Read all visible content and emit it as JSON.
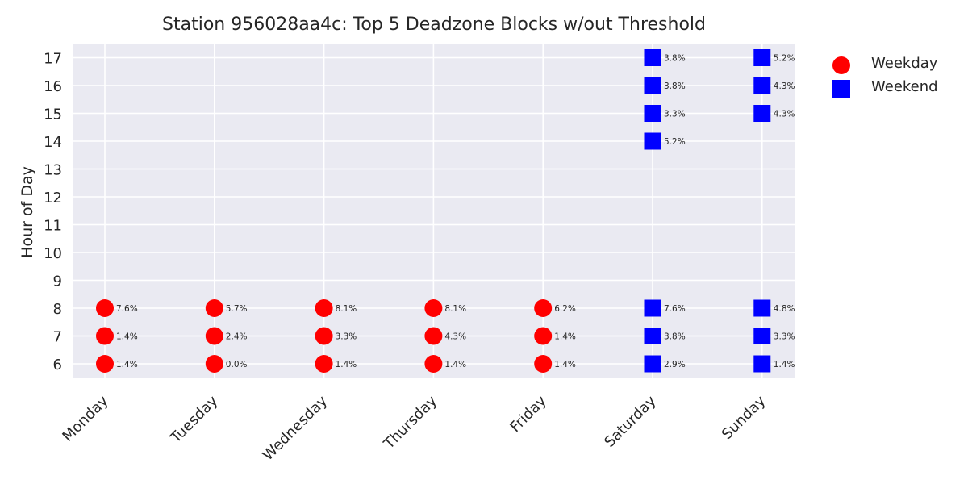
{
  "chart_data": {
    "type": "scatter",
    "title": "Station 956028aa4c: Top 5 Deadzone Blocks w/out Threshold",
    "xlabel": "",
    "ylabel": "Hour of Day",
    "categories": [
      "Monday",
      "Tuesday",
      "Wednesday",
      "Thursday",
      "Friday",
      "Saturday",
      "Sunday"
    ],
    "y_ticks": [
      6,
      7,
      8,
      9,
      10,
      11,
      12,
      13,
      14,
      15,
      16,
      17
    ],
    "ylim": [
      5.5,
      17.5
    ],
    "grid": true,
    "legend_position": "outside-right",
    "series": [
      {
        "name": "Weekday",
        "marker": "circle",
        "color": "#ff0000",
        "points": [
          {
            "x": "Monday",
            "y": 8,
            "label": "7.6%"
          },
          {
            "x": "Monday",
            "y": 7,
            "label": "1.4%"
          },
          {
            "x": "Monday",
            "y": 6,
            "label": "1.4%"
          },
          {
            "x": "Tuesday",
            "y": 8,
            "label": "5.7%"
          },
          {
            "x": "Tuesday",
            "y": 7,
            "label": "2.4%"
          },
          {
            "x": "Tuesday",
            "y": 6,
            "label": "0.0%"
          },
          {
            "x": "Wednesday",
            "y": 8,
            "label": "8.1%"
          },
          {
            "x": "Wednesday",
            "y": 7,
            "label": "3.3%"
          },
          {
            "x": "Wednesday",
            "y": 6,
            "label": "1.4%"
          },
          {
            "x": "Thursday",
            "y": 8,
            "label": "8.1%"
          },
          {
            "x": "Thursday",
            "y": 7,
            "label": "4.3%"
          },
          {
            "x": "Thursday",
            "y": 6,
            "label": "1.4%"
          },
          {
            "x": "Friday",
            "y": 8,
            "label": "6.2%"
          },
          {
            "x": "Friday",
            "y": 7,
            "label": "1.4%"
          },
          {
            "x": "Friday",
            "y": 6,
            "label": "1.4%"
          }
        ]
      },
      {
        "name": "Weekend",
        "marker": "square",
        "color": "#0000ff",
        "points": [
          {
            "x": "Saturday",
            "y": 17,
            "label": "3.8%"
          },
          {
            "x": "Saturday",
            "y": 16,
            "label": "3.8%"
          },
          {
            "x": "Saturday",
            "y": 15,
            "label": "3.3%"
          },
          {
            "x": "Saturday",
            "y": 14,
            "label": "5.2%"
          },
          {
            "x": "Saturday",
            "y": 8,
            "label": "7.6%"
          },
          {
            "x": "Saturday",
            "y": 7,
            "label": "3.8%"
          },
          {
            "x": "Saturday",
            "y": 6,
            "label": "2.9%"
          },
          {
            "x": "Sunday",
            "y": 17,
            "label": "5.2%"
          },
          {
            "x": "Sunday",
            "y": 16,
            "label": "4.3%"
          },
          {
            "x": "Sunday",
            "y": 15,
            "label": "4.3%"
          },
          {
            "x": "Sunday",
            "y": 8,
            "label": "4.8%"
          },
          {
            "x": "Sunday",
            "y": 7,
            "label": "3.3%"
          },
          {
            "x": "Sunday",
            "y": 6,
            "label": "1.4%"
          }
        ]
      }
    ],
    "colors": {
      "plot_background": "#eaeaf2",
      "grid": "#ffffff",
      "text": "#262626"
    }
  }
}
